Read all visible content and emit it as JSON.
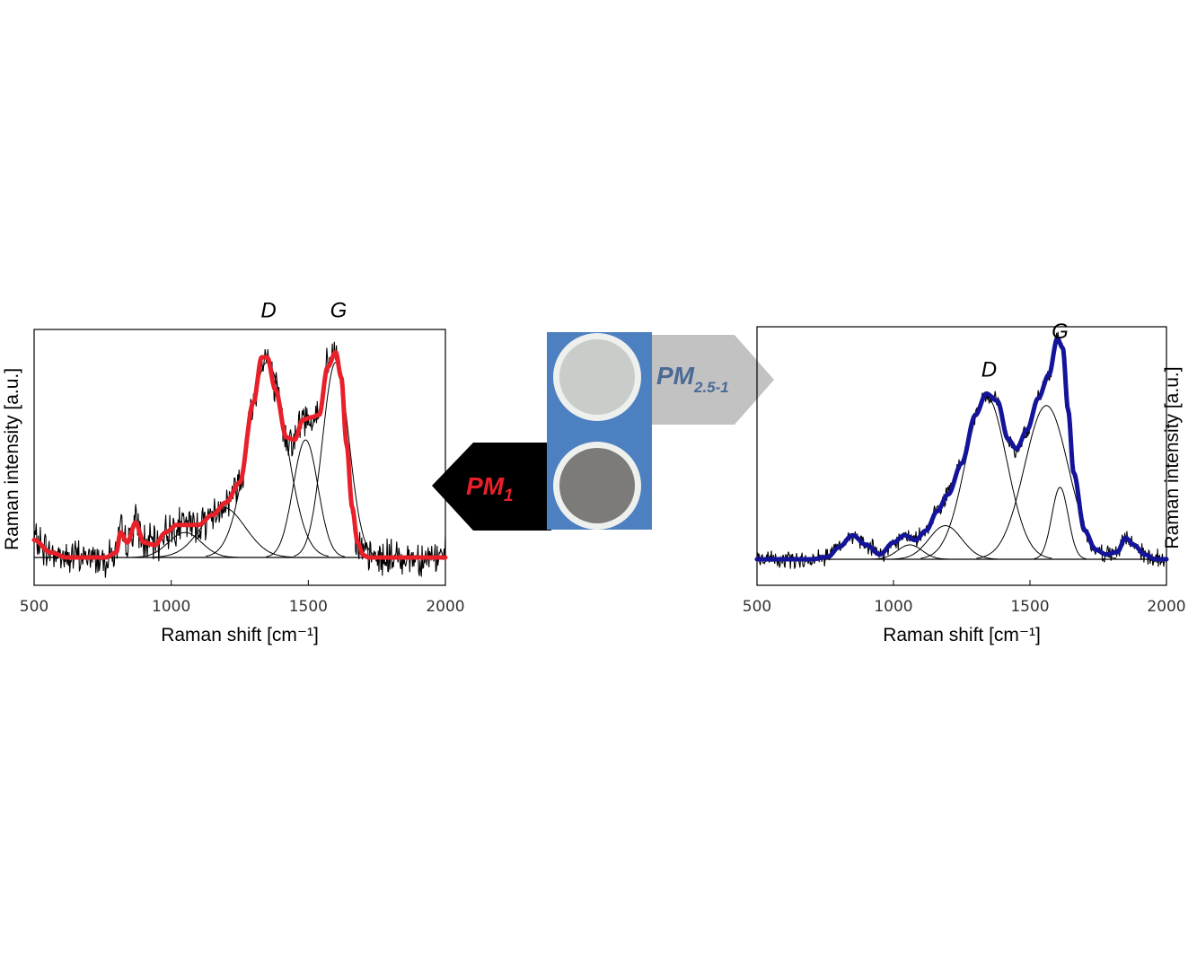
{
  "chart_data": [
    {
      "type": "line",
      "panel": "left",
      "xlabel": "Raman shift [cm⁻¹]",
      "ylabel": "Raman intensity [a.u.]",
      "xlim": [
        500,
        2000
      ],
      "xticks": [
        500,
        1000,
        1500,
        2000
      ],
      "ylim": [
        -0.1,
        1.02
      ],
      "grid": false,
      "peak_labels": [
        {
          "text": "D",
          "x": 1355,
          "y": 0.96
        },
        {
          "text": "G",
          "x": 1610,
          "y": 0.96
        }
      ],
      "series": [
        {
          "role": "fit",
          "color": "#e8202a",
          "x": [
            500,
            560,
            620,
            700,
            760,
            800,
            815,
            840,
            870,
            900,
            940,
            980,
            1020,
            1060,
            1100,
            1150,
            1200,
            1250,
            1300,
            1330,
            1350,
            1380,
            1420,
            1450,
            1480,
            1510,
            1540,
            1570,
            1600,
            1620,
            1640,
            1660,
            1680,
            1700,
            1720,
            1760,
            1800,
            1900,
            2000
          ],
          "y": [
            0.07,
            0.02,
            0.0,
            0.0,
            0.0,
            0.02,
            0.1,
            0.06,
            0.14,
            0.06,
            0.05,
            0.1,
            0.13,
            0.13,
            0.13,
            0.17,
            0.22,
            0.3,
            0.62,
            0.8,
            0.8,
            0.67,
            0.48,
            0.47,
            0.55,
            0.56,
            0.57,
            0.76,
            0.82,
            0.72,
            0.45,
            0.2,
            0.06,
            0.01,
            0.0,
            0.0,
            0.0,
            0.0,
            0.0
          ]
        },
        {
          "role": "component",
          "color": "#000000",
          "center": 1050,
          "amplitude": 0.1,
          "width": 60
        },
        {
          "role": "component",
          "color": "#000000",
          "center": 1190,
          "amplitude": 0.2,
          "width": 80
        },
        {
          "role": "component",
          "color": "#000000",
          "center": 1350,
          "amplitude": 0.78,
          "width": 70
        },
        {
          "role": "component",
          "color": "#000000",
          "center": 1490,
          "amplitude": 0.47,
          "width": 45
        },
        {
          "role": "component",
          "color": "#000000",
          "center": 1600,
          "amplitude": 0.78,
          "width": 48
        }
      ]
    },
    {
      "type": "line",
      "panel": "right",
      "xlabel": "Raman shift [cm⁻¹]",
      "ylabel": "Raman intensity [a.u.]",
      "xlim": [
        500,
        2000
      ],
      "xticks": [
        500,
        1000,
        1500,
        2000
      ],
      "ylim": [
        -0.1,
        1.02
      ],
      "grid": false,
      "peak_labels": [
        {
          "text": "D",
          "x": 1350,
          "y": 0.76
        },
        {
          "text": "G",
          "x": 1610,
          "y": 0.92
        }
      ],
      "series": [
        {
          "role": "fit",
          "color": "#14149a",
          "x": [
            500,
            600,
            700,
            760,
            800,
            850,
            900,
            950,
            1000,
            1040,
            1080,
            1120,
            1160,
            1200,
            1250,
            1300,
            1340,
            1380,
            1420,
            1450,
            1490,
            1530,
            1570,
            1600,
            1620,
            1640,
            1660,
            1700,
            1740,
            1780,
            1820,
            1850,
            1880,
            1920,
            1960,
            2000
          ],
          "y": [
            0.0,
            0.0,
            0.0,
            0.01,
            0.05,
            0.1,
            0.06,
            0.02,
            0.07,
            0.1,
            0.08,
            0.12,
            0.2,
            0.27,
            0.4,
            0.6,
            0.69,
            0.66,
            0.5,
            0.46,
            0.54,
            0.67,
            0.77,
            0.92,
            0.88,
            0.62,
            0.36,
            0.12,
            0.04,
            0.02,
            0.03,
            0.09,
            0.06,
            0.02,
            0.0,
            0.0
          ]
        },
        {
          "role": "component",
          "color": "#000000",
          "center": 1060,
          "amplitude": 0.06,
          "width": 45
        },
        {
          "role": "component",
          "color": "#000000",
          "center": 1190,
          "amplitude": 0.14,
          "width": 60
        },
        {
          "role": "component",
          "color": "#000000",
          "center": 1340,
          "amplitude": 0.68,
          "width": 75
        },
        {
          "role": "component",
          "color": "#000000",
          "center": 1560,
          "amplitude": 0.64,
          "width": 80
        },
        {
          "role": "component",
          "color": "#000000",
          "center": 1610,
          "amplitude": 0.3,
          "width": 30
        }
      ]
    }
  ],
  "labels": {
    "pm1_main": "PM",
    "pm1_sub": "1",
    "pm25_main": "PM",
    "pm25_sub": "2.5-1"
  },
  "colors": {
    "pm1_text": "#e8202a",
    "pm25_text": "#4a6a96",
    "filter_panel": "#4d80c0",
    "pm1_arrow": "#000000",
    "pm25_arrow": "#c2c2c2"
  }
}
